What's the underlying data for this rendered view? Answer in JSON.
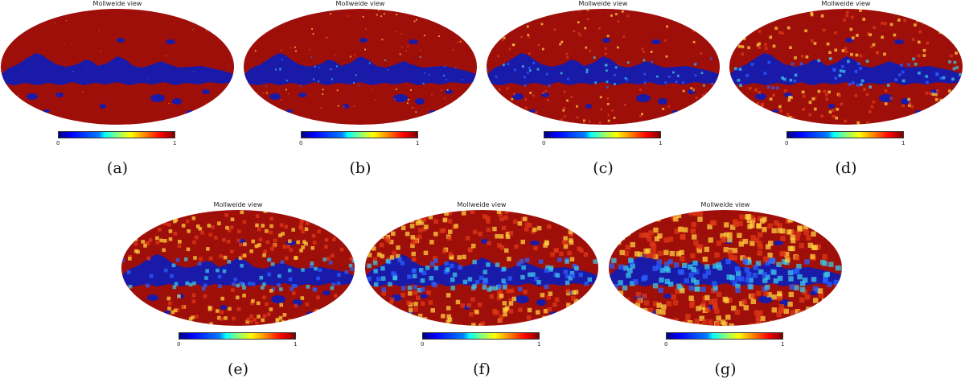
{
  "panels": [
    {
      "title": "Mollweide view",
      "caption": "(a)",
      "cbar_min": "0",
      "cbar_max": "1"
    },
    {
      "title": "Mollweide view",
      "caption": "(b)",
      "cbar_min": "0",
      "cbar_max": "1"
    },
    {
      "title": "Mollweide view",
      "caption": "(c)",
      "cbar_min": "0",
      "cbar_max": "1"
    },
    {
      "title": "Mollweide view",
      "caption": "(d)",
      "cbar_min": "0",
      "cbar_max": "1"
    },
    {
      "title": "Mollweide view",
      "caption": "(e)",
      "cbar_min": "0",
      "cbar_max": "1"
    },
    {
      "title": "Mollweide view",
      "caption": "(f)",
      "cbar_min": "0",
      "cbar_max": "1"
    },
    {
      "title": "Mollweide view",
      "caption": "(g)",
      "cbar_min": "0",
      "cbar_max": "1"
    }
  ],
  "colors": {
    "mask_on": "#9e0f0a",
    "mask_off": "#1a1aa8",
    "speckle": [
      "#e03a16",
      "#ffd23c",
      "#3cc8e8",
      "#2a60ff"
    ]
  }
}
